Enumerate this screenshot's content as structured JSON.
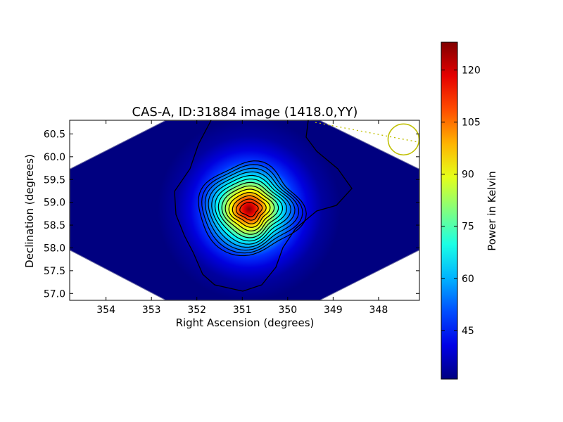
{
  "chart_data": {
    "type": "heatmap",
    "title": "CAS-A, ID:31884 image (1418.0,YY)",
    "xlabel": "Right Ascension (degrees)",
    "ylabel": "Declination (degrees)",
    "x_axis": {
      "direction": "decreasing-right",
      "xlim": [
        354.8,
        347.1
      ],
      "ticks": [
        354,
        353,
        352,
        351,
        350,
        349,
        348
      ],
      "tick_labels": [
        "354",
        "353",
        "352",
        "351",
        "350",
        "349",
        "348"
      ]
    },
    "y_axis": {
      "ylim": [
        56.85,
        60.8
      ],
      "ticks": [
        57.0,
        57.5,
        58.0,
        58.5,
        59.0,
        59.5,
        60.0,
        60.5
      ],
      "tick_labels": [
        "57.0",
        "57.5",
        "58.0",
        "58.5",
        "59.0",
        "59.5",
        "60.0",
        "60.5"
      ]
    },
    "source": {
      "ra": 350.85,
      "dec": 58.85,
      "peak_kelvin": 127
    },
    "beam_marker": {
      "ra": 347.45,
      "dec": 60.38
    },
    "contour_levels_kelvin": [
      33,
      40,
      47,
      54,
      61,
      68,
      75,
      82,
      89,
      96,
      103,
      110,
      117,
      124
    ],
    "colorbar": {
      "label": "Power in Kelvin",
      "range": [
        31,
        128
      ],
      "ticks": [
        45,
        60,
        75,
        90,
        105,
        120
      ],
      "tick_labels": [
        "45",
        "60",
        "75",
        "90",
        "105",
        "120"
      ],
      "colormap": "jet"
    },
    "grid": false
  },
  "colors": {
    "background_field": "#000080",
    "peak": "#800000",
    "contour": "#000000",
    "beam_marker": "#bfbf00"
  }
}
